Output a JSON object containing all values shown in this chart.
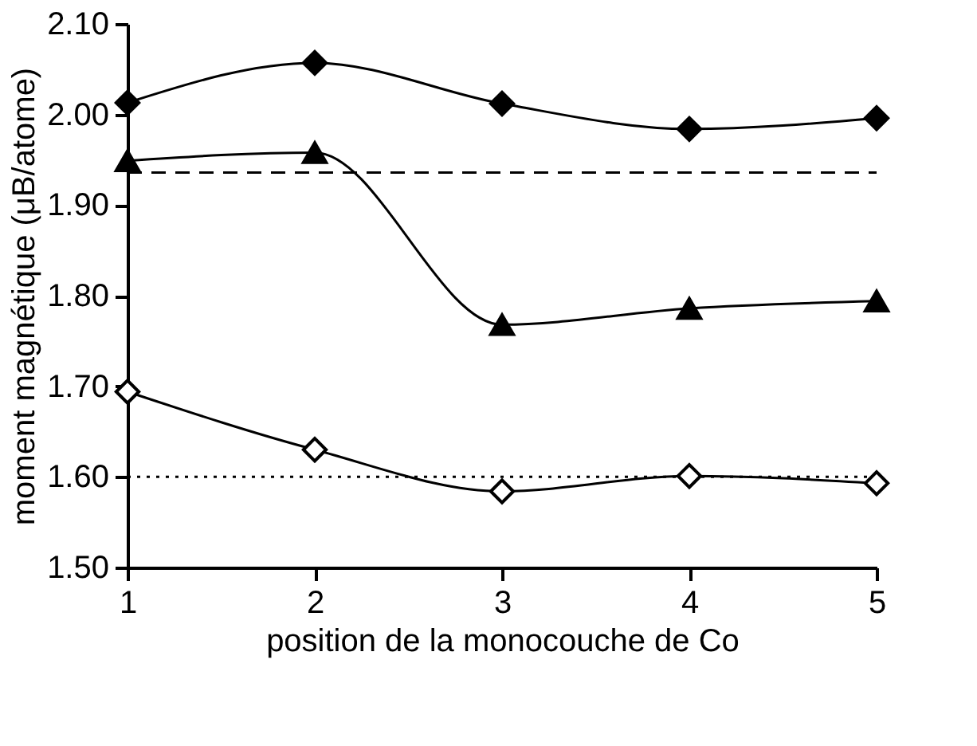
{
  "chart_data": {
    "type": "line",
    "xlabel": "position de la monocouche de Co",
    "ylabel": "moment magnétique (μB/atome)",
    "x": [
      1,
      2,
      3,
      4,
      5
    ],
    "series": [
      {
        "color": "#000000",
        "marker": "diamond",
        "values": [
          2.013,
          2.057,
          2.012,
          1.984,
          1.996
        ]
      },
      {
        "color": "#000000",
        "marker": "triangle",
        "values": [
          1.949,
          1.958,
          1.768,
          1.786,
          1.794
        ]
      },
      {
        "color": "#000000",
        "marker": "diamond",
        "colors": [
          "#ffffff",
          "#ffffff",
          "#ffffff",
          "#ffffff",
          "#ffffff"
        ],
        "values": [
          1.694,
          1.63,
          1.584,
          1.601,
          1.593
        ]
      }
    ],
    "ref_lines": [
      {
        "axis": "y",
        "value": 1.936,
        "line_style": "dashed",
        "color": "#000000"
      },
      {
        "axis": "y",
        "value": 1.6,
        "line_style": "dotted",
        "color": "#000000"
      }
    ],
    "xlim": [
      1,
      5
    ],
    "xticks": [
      {
        "value": 1,
        "label": "1"
      },
      {
        "value": 2,
        "label": "2"
      },
      {
        "value": 3,
        "label": "3"
      },
      {
        "value": 4,
        "label": "4"
      },
      {
        "value": 5,
        "label": "5"
      }
    ],
    "ylim": [
      1.5,
      2.1
    ],
    "yticks": [
      {
        "value": 1.5,
        "label": "1.50"
      },
      {
        "value": 1.6,
        "label": "1.60"
      },
      {
        "value": 1.7,
        "label": "1.70"
      },
      {
        "value": 1.8,
        "label": "1.80"
      },
      {
        "value": 1.9,
        "label": "1.90"
      },
      {
        "value": 2.0,
        "label": "2.00"
      },
      {
        "value": 2.1,
        "label": "2.10"
      }
    ],
    "grid": false,
    "line_style": "solid"
  }
}
